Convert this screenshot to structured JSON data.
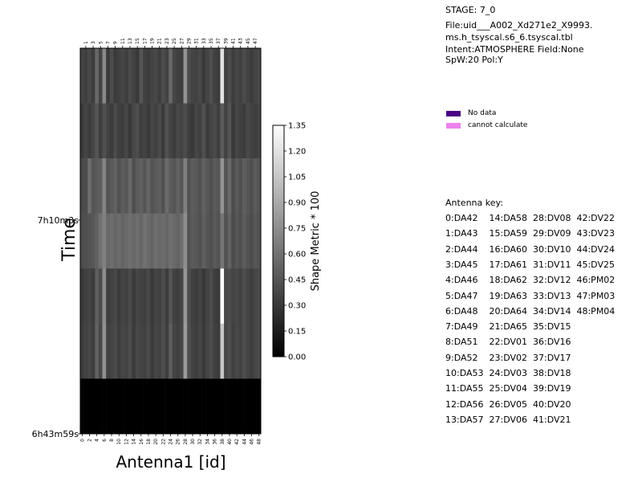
{
  "header": {
    "stage": "STAGE: 7_0",
    "file_line1": "File:uid___A002_Xd271e2_X9993.",
    "file_line2": "ms.h_tsyscal.s6_6.tsyscal.tbl",
    "intent": "Intent:ATMOSPHERE Field:None",
    "spw": "SpW:20 Pol:Y"
  },
  "legend": {
    "items": [
      {
        "label": "No data",
        "color": "#4b0082"
      },
      {
        "label": "cannot calculate",
        "color": "#ee82ee"
      }
    ]
  },
  "antenna_key": {
    "title": "Antenna key:",
    "rows": [
      "0:DA42    14:DA58  28:DV08  42:DV22",
      "1:DA43    15:DA59  29:DV09  43:DV23",
      "2:DA44    16:DA60  30:DV10  44:DV24",
      "3:DA45    17:DA61  31:DV11  45:DV25",
      "4:DA46    18:DA62  32:DV12  46:PM02",
      "5:DA47    19:DA63  33:DV13  47:PM03",
      "6:DA48    20:DA64  34:DV14  48:PM04",
      "7:DA49    21:DA65  35:DV15",
      "8:DA51    22:DV01  36:DV16",
      "9:DA52    23:DV02  37:DV17",
      "10:DA53  24:DV03  38:DV18",
      "11:DA55  25:DV04  39:DV19",
      "12:DA56  26:DV05  40:DV20",
      "13:DA57  27:DV06  41:DV21"
    ]
  },
  "chart_data": {
    "type": "heatmap",
    "xlabel": "Antenna1 [id]",
    "ylabel": "Time",
    "colorbar_label": "Shape Metric * 100",
    "colorbar_ticks": [
      "0.00",
      "0.15",
      "0.30",
      "0.45",
      "0.60",
      "0.75",
      "0.90",
      "1.05",
      "1.20",
      "1.35"
    ],
    "colorbar_range": [
      0,
      1.35
    ],
    "colormap": "gray",
    "x_ticks_bottom": [
      0,
      2,
      4,
      6,
      8,
      10,
      12,
      14,
      16,
      18,
      20,
      22,
      24,
      26,
      28,
      30,
      32,
      34,
      36,
      38,
      40,
      42,
      44,
      46,
      48
    ],
    "x_ticks_top": [
      1,
      3,
      5,
      7,
      9,
      11,
      13,
      15,
      17,
      19,
      21,
      23,
      25,
      27,
      29,
      31,
      33,
      35,
      37,
      39,
      41,
      43,
      45,
      47
    ],
    "y_tick_labels": [
      "7h10m3s",
      "6h43m59s"
    ],
    "n_antennas": 49,
    "rows": [
      [
        0.35,
        0.33,
        0.38,
        0.32,
        0.55,
        0.36,
        0.72,
        0.3,
        0.4,
        0.31,
        0.34,
        0.37,
        0.33,
        0.39,
        0.35,
        0.3,
        0.45,
        0.34,
        0.32,
        0.36,
        0.38,
        0.33,
        0.4,
        0.35,
        0.55,
        0.37,
        0.34,
        0.33,
        0.78,
        0.41,
        0.36,
        0.35,
        0.38,
        0.3,
        0.36,
        0.42,
        0.34,
        0.32,
        1.2,
        0.35,
        0.4,
        0.33,
        0.37,
        0.34,
        0.39,
        0.35,
        0.32,
        0.36,
        0.38
      ],
      [
        0.3,
        0.36,
        0.32,
        0.37,
        0.45,
        0.33,
        0.42,
        0.35,
        0.31,
        0.4,
        0.34,
        0.32,
        0.37,
        0.3,
        0.38,
        0.41,
        0.33,
        0.35,
        0.3,
        0.37,
        0.34,
        0.39,
        0.31,
        0.43,
        0.36,
        0.32,
        0.38,
        0.35,
        0.4,
        0.33,
        0.3,
        0.37,
        0.34,
        0.42,
        0.31,
        0.36,
        0.39,
        0.33,
        0.48,
        0.35,
        0.45,
        0.3,
        0.37,
        0.34,
        0.32,
        0.38,
        0.35,
        0.33,
        0.36
      ],
      [
        0.38,
        0.4,
        0.58,
        0.45,
        0.48,
        0.5,
        0.7,
        0.44,
        0.47,
        0.52,
        0.43,
        0.49,
        0.46,
        0.55,
        0.42,
        0.48,
        0.51,
        0.45,
        0.53,
        0.44,
        0.47,
        0.5,
        0.43,
        0.56,
        0.48,
        0.45,
        0.52,
        0.46,
        0.68,
        0.44,
        0.49,
        0.47,
        0.43,
        0.51,
        0.46,
        0.42,
        0.48,
        0.45,
        0.78,
        0.44,
        0.55,
        0.41,
        0.47,
        0.43,
        0.5,
        0.45,
        0.42,
        0.48,
        0.44
      ],
      [
        0.4,
        0.42,
        0.44,
        0.46,
        0.52,
        0.6,
        0.68,
        0.55,
        0.58,
        0.54,
        0.57,
        0.53,
        0.56,
        0.59,
        0.55,
        0.58,
        0.54,
        0.6,
        0.56,
        0.53,
        0.58,
        0.55,
        0.57,
        0.54,
        0.59,
        0.56,
        0.53,
        0.58,
        0.75,
        0.44,
        0.48,
        0.46,
        0.43,
        0.5,
        0.45,
        0.42,
        0.47,
        0.44,
        0.62,
        0.43,
        0.52,
        0.4,
        0.46,
        0.42,
        0.48,
        0.44,
        0.41,
        0.46,
        0.43
      ],
      [
        0.3,
        0.34,
        0.36,
        0.32,
        0.5,
        0.4,
        0.74,
        0.33,
        0.35,
        0.38,
        0.32,
        0.36,
        0.34,
        0.39,
        0.31,
        0.37,
        0.35,
        0.33,
        0.38,
        0.3,
        0.36,
        0.34,
        0.4,
        0.32,
        0.45,
        0.35,
        0.33,
        0.37,
        0.8,
        0.41,
        0.34,
        0.32,
        0.36,
        0.29,
        0.35,
        0.4,
        0.33,
        0.31,
        1.35,
        0.38,
        0.4,
        0.36,
        0.38,
        0.35,
        0.4,
        0.36,
        0.33,
        0.37,
        0.39
      ],
      [
        0.32,
        0.35,
        0.37,
        0.33,
        0.52,
        0.38,
        0.76,
        0.34,
        0.36,
        0.39,
        0.33,
        0.37,
        0.35,
        0.4,
        0.32,
        0.38,
        0.36,
        0.34,
        0.39,
        0.31,
        0.37,
        0.35,
        0.41,
        0.33,
        0.5,
        0.36,
        0.34,
        0.38,
        0.82,
        0.42,
        0.35,
        0.33,
        0.37,
        0.3,
        0.36,
        0.41,
        0.34,
        0.32,
        1.05,
        0.37,
        0.42,
        0.34,
        0.38,
        0.35,
        0.4,
        0.36,
        0.33,
        0.37,
        0.39
      ],
      [
        0,
        0,
        0,
        0,
        0,
        0,
        0,
        0,
        0,
        0,
        0,
        0,
        0,
        0,
        0,
        0,
        0,
        0,
        0,
        0,
        0,
        0,
        0,
        0,
        0,
        0,
        0,
        0,
        0,
        0,
        0,
        0,
        0,
        0,
        0,
        0,
        0,
        0,
        0,
        0,
        0,
        0,
        0,
        0,
        0,
        0,
        0,
        0,
        0
      ]
    ]
  }
}
